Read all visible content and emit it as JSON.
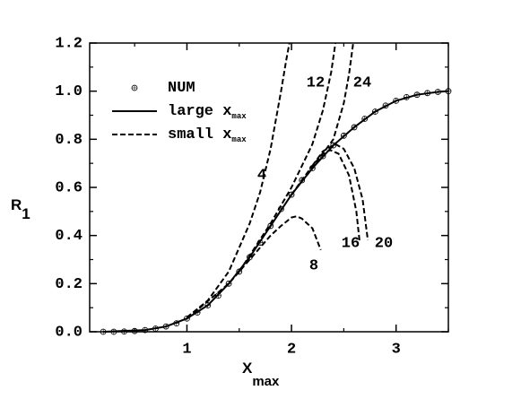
{
  "chart_data": {
    "type": "line",
    "xlabel": {
      "text": "X",
      "sub": "max"
    },
    "ylabel": {
      "text": "R",
      "sub": "1"
    },
    "xlim": [
      0.07,
      3.5
    ],
    "ylim": [
      0,
      1.2
    ],
    "xticks": [
      1,
      2,
      3
    ],
    "yticks": [
      {
        "value": 0,
        "label": "0.0"
      },
      0.2,
      0.4,
      0.6,
      0.8,
      {
        "value": 1,
        "label": "1.0"
      },
      1.2
    ],
    "xminorticks": [
      0.5,
      1.5,
      2.5,
      3.5
    ],
    "yminorticks": [
      0.1,
      0.3,
      0.5,
      0.7,
      0.9,
      1.1
    ],
    "legend": [
      {
        "text": "NUM",
        "style": "markers"
      },
      {
        "text": "large x",
        "sub": "max",
        "style": "solid"
      },
      {
        "text": "small x",
        "sub": "max",
        "style": "dashed"
      }
    ],
    "series": [
      {
        "style": "markers",
        "color": "#000000",
        "x": [
          0.2,
          0.3,
          0.4,
          0.5,
          0.6,
          0.7,
          0.8,
          0.9,
          1.0,
          1.1,
          1.2,
          1.3,
          1.4,
          1.5,
          1.6,
          1.7,
          1.8,
          1.9,
          2.0,
          2.1,
          2.2,
          2.3,
          2.4,
          2.5,
          2.6,
          2.7,
          2.8,
          2.9,
          3.0,
          3.1,
          3.2,
          3.3,
          3.4,
          3.5
        ],
        "values": [
          0,
          0,
          0.001,
          0.003,
          0.007,
          0.013,
          0.022,
          0.035,
          0.055,
          0.08,
          0.11,
          0.15,
          0.2,
          0.25,
          0.31,
          0.37,
          0.44,
          0.51,
          0.57,
          0.63,
          0.68,
          0.73,
          0.775,
          0.815,
          0.85,
          0.885,
          0.915,
          0.94,
          0.96,
          0.975,
          0.985,
          0.992,
          0.997,
          1.0
        ]
      },
      {
        "style": "solid",
        "color": "#000000",
        "x": [
          0.2,
          0.6,
          0.8,
          1.0,
          1.2,
          1.4,
          1.6,
          1.8,
          2.0,
          2.2,
          2.4,
          2.6,
          2.8,
          3.0,
          3.2,
          3.4,
          3.5
        ],
        "values": [
          0,
          0.007,
          0.022,
          0.055,
          0.11,
          0.2,
          0.31,
          0.44,
          0.57,
          0.68,
          0.775,
          0.85,
          0.915,
          0.96,
          0.985,
          0.997,
          1.0
        ]
      },
      {
        "style": "dashed",
        "color": "#000000",
        "label": "4",
        "x": [
          1.0,
          1.2,
          1.4,
          1.6,
          1.7,
          1.8,
          1.9,
          1.95,
          1.98
        ],
        "values": [
          0.06,
          0.13,
          0.25,
          0.45,
          0.58,
          0.76,
          1.0,
          1.13,
          1.2
        ]
      },
      {
        "style": "dashed",
        "color": "#000000",
        "label": "8",
        "x": [
          1.0,
          1.4,
          1.6,
          1.8,
          1.9,
          2.0,
          2.05,
          2.1,
          2.2,
          2.28
        ],
        "values": [
          0.055,
          0.2,
          0.3,
          0.4,
          0.44,
          0.475,
          0.48,
          0.47,
          0.43,
          0.34
        ]
      },
      {
        "style": "dashed",
        "color": "#000000",
        "label": "12",
        "x": [
          1.5,
          1.8,
          2.0,
          2.2,
          2.3,
          2.38,
          2.42
        ],
        "values": [
          0.25,
          0.45,
          0.6,
          0.78,
          0.92,
          1.08,
          1.2
        ]
      },
      {
        "style": "dashed",
        "color": "#000000",
        "label": "16",
        "x": [
          2.0,
          2.2,
          2.3,
          2.37,
          2.45,
          2.55,
          2.62,
          2.65
        ],
        "values": [
          0.57,
          0.69,
          0.74,
          0.755,
          0.74,
          0.65,
          0.5,
          0.38
        ]
      },
      {
        "style": "dashed",
        "color": "#000000",
        "label": "20",
        "x": [
          2.2,
          2.3,
          2.42,
          2.5,
          2.6,
          2.68,
          2.73
        ],
        "values": [
          0.69,
          0.75,
          0.78,
          0.76,
          0.68,
          0.55,
          0.38
        ]
      },
      {
        "style": "dashed",
        "color": "#000000",
        "label": "24",
        "x": [
          2.0,
          2.2,
          2.3,
          2.4,
          2.5,
          2.55,
          2.59
        ],
        "values": [
          0.57,
          0.68,
          0.74,
          0.8,
          0.95,
          1.07,
          1.2
        ]
      }
    ]
  }
}
